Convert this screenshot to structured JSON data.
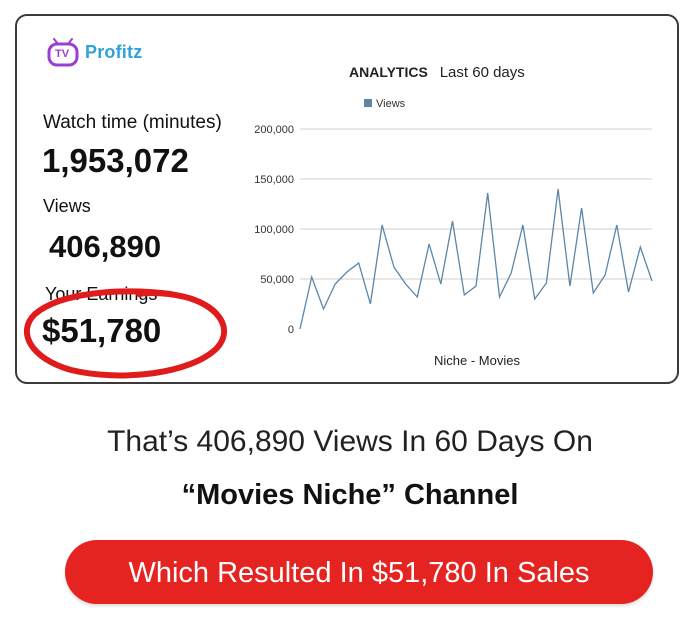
{
  "brand": {
    "logo_mark": "TV",
    "name": "Profitz"
  },
  "stats": {
    "watch_time_label": "Watch time (minutes)",
    "watch_time_value": "1,953,072",
    "views_label": "Views",
    "views_value": "406,890",
    "earnings_label": "Your Earnings",
    "earnings_value": "$51,780"
  },
  "analytics": {
    "title": "ANALYTICS",
    "range": "Last 60 days"
  },
  "chart_data": {
    "type": "line",
    "title": "",
    "xlabel": "Niche - Movies",
    "ylabel": "",
    "ylim": [
      0,
      200000
    ],
    "yticks": [
      0,
      50000,
      100000,
      150000,
      200000
    ],
    "ytick_labels": [
      "0",
      "50,000",
      "100,000",
      "150,000",
      "200,000"
    ],
    "grid": true,
    "legend": "top-left",
    "series": [
      {
        "name": "Views",
        "color": "#5b86a8",
        "values": [
          0,
          52000,
          20000,
          45000,
          57000,
          66000,
          25000,
          104000,
          62000,
          45000,
          32000,
          85000,
          45000,
          108000,
          34000,
          43000,
          136000,
          32000,
          56000,
          104000,
          30000,
          46000,
          140000,
          43000,
          121000,
          36000,
          54000,
          104000,
          37000,
          82000,
          48000
        ]
      }
    ]
  },
  "footer": {
    "headline": "That’s 406,890 Views In 60 Days On",
    "subline": "“Movies Niche” Channel",
    "cta": "Which Resulted In $51,780 In Sales"
  },
  "colors": {
    "brand_blue": "#2fa3d6",
    "brand_purple": "#9b3fd0",
    "circle_red": "#e01b1b",
    "cta_red": "#e52320"
  }
}
